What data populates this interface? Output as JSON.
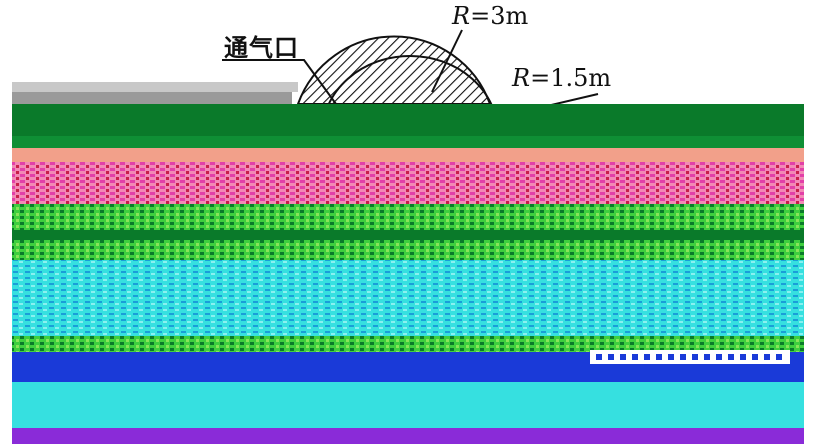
{
  "labels": {
    "vent": "通气口",
    "outer_radius": {
      "symbol": "R",
      "value": "=3m"
    },
    "inner_radius": {
      "symbol": "R",
      "value": "=1.5m"
    }
  },
  "colors": {
    "green_dark": "#0a7a2a",
    "green_light": "#3ecf3e",
    "magenta": "#e23fa8",
    "pink": "#f28ab5",
    "cyan": "#36e0e0",
    "blue": "#1a3ad8",
    "purple": "#8a2bd8",
    "ink": "#111111"
  }
}
